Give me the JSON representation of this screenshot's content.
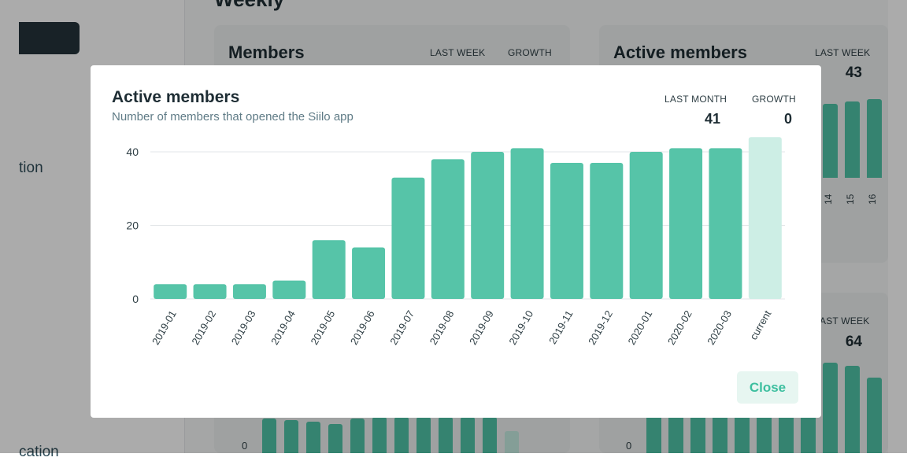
{
  "background": {
    "section_heading": "Weekly",
    "sidebar": {
      "item_1": "tion",
      "item_2": "cation"
    },
    "cards": {
      "members": {
        "title": "Members",
        "last_week_label": "LAST WEEK",
        "growth_label": "GROWTH",
        "zero_label": "0"
      },
      "active_members": {
        "title": "Active members",
        "last_week_label": "LAST WEEK",
        "last_week_value": "43",
        "ticks": [
          "14",
          "15",
          "16"
        ]
      },
      "lower_right": {
        "last_week_label": "AST WEEK",
        "last_week_value": "64",
        "zero_label": "0"
      }
    }
  },
  "modal": {
    "title": "Active members",
    "subtitle": "Number of members that opened the Siilo app",
    "last_month_label": "LAST MONTH",
    "last_month_value": "41",
    "growth_label": "GROWTH",
    "growth_value": "0",
    "close_label": "Close"
  },
  "chart_data": {
    "type": "bar",
    "categories": [
      "2019-01",
      "2019-02",
      "2019-03",
      "2019-04",
      "2019-05",
      "2019-06",
      "2019-07",
      "2019-08",
      "2019-09",
      "2019-10",
      "2019-11",
      "2019-12",
      "2020-01",
      "2020-02",
      "2020-03",
      "current"
    ],
    "values": [
      4,
      4,
      4,
      5,
      16,
      14,
      33,
      38,
      40,
      41,
      37,
      37,
      40,
      41,
      41,
      44
    ],
    "highlight_last": true,
    "y_ticks": [
      0,
      20,
      40
    ],
    "ylim": [
      0,
      44
    ],
    "grid": true,
    "colors": {
      "bar": "#56c4a8",
      "current_bar": "#cdeee5",
      "grid": "#e3e6e8",
      "text": "#2f3f45"
    }
  }
}
